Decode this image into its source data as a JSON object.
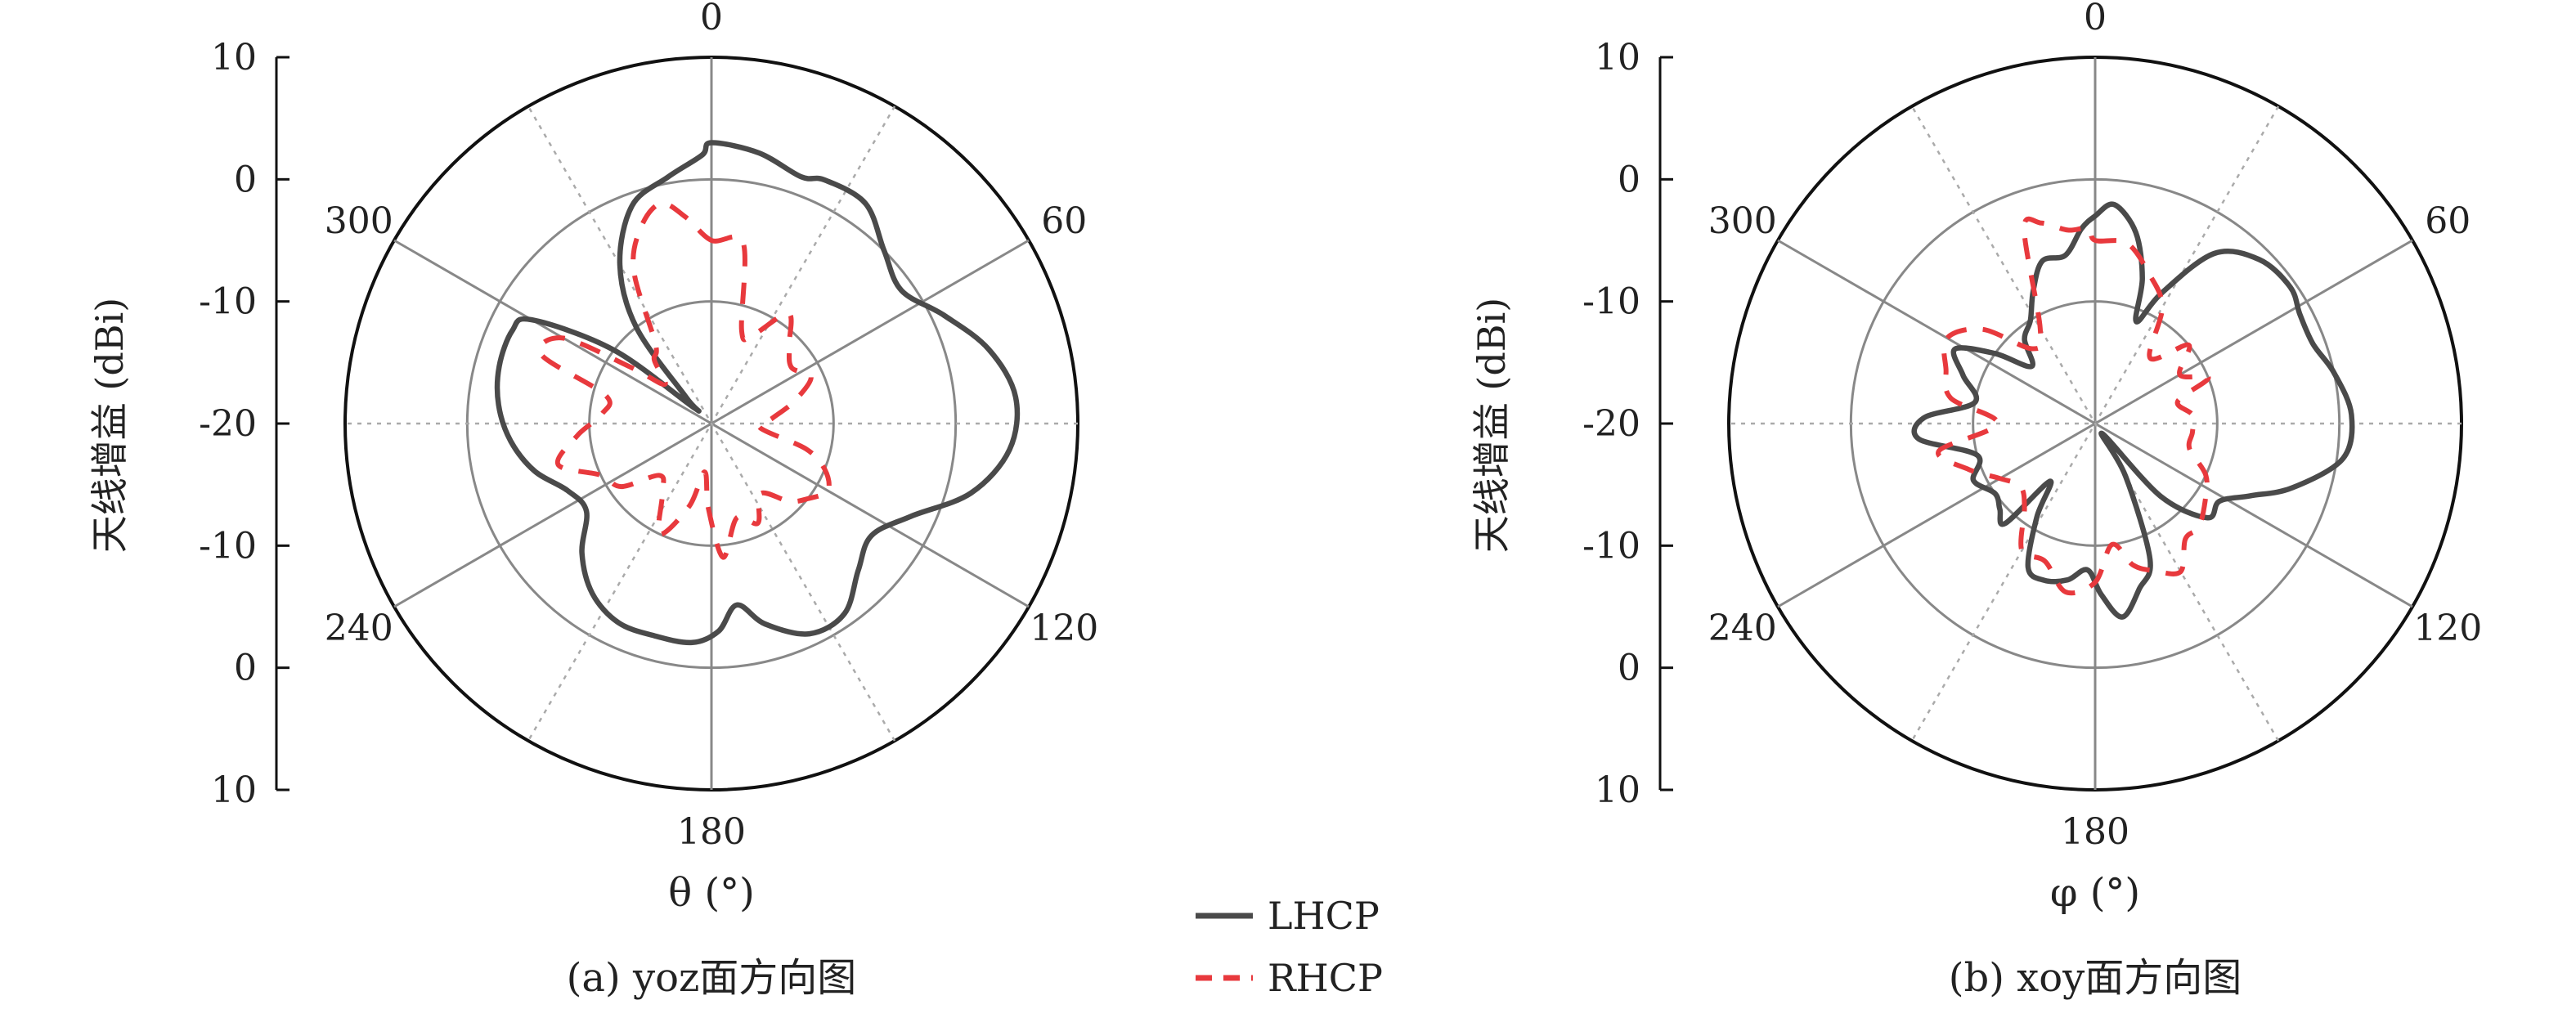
{
  "figure": {
    "legend": {
      "position": "bottom-center",
      "entries": [
        "LHCP",
        "RHCP"
      ]
    },
    "colors": {
      "LHCP": "#4a4a4a",
      "RHCP": "#e8393d",
      "grid": "#888888",
      "spoke": "#aaaaaa"
    }
  },
  "chart_data": [
    {
      "type": "polar-line",
      "caption": "(a) yoz面方向图",
      "xlabel": "θ (°)",
      "ylabel": "天线增益 (dBi)",
      "rlim": [
        -20,
        10
      ],
      "rings": [
        -10,
        0
      ],
      "radial_tick_labels": [
        "10",
        "0",
        "-10",
        "-20",
        "-10",
        "0",
        "10"
      ],
      "angle_labels": [
        {
          "angle": 0,
          "text": "0"
        },
        {
          "angle": 60,
          "text": "60"
        },
        {
          "angle": 120,
          "text": "120"
        },
        {
          "angle": 180,
          "text": "180"
        },
        {
          "angle": 240,
          "text": "240"
        },
        {
          "angle": 300,
          "text": "300"
        }
      ],
      "series": [
        {
          "name": "LHCP",
          "style": "solid",
          "color": "#4a4a4a",
          "points": [
            [
              0,
              3
            ],
            [
              10,
              2.5
            ],
            [
              20,
              1.5
            ],
            [
              25,
              2
            ],
            [
              35,
              2
            ],
            [
              45,
              0
            ],
            [
              55,
              -1
            ],
            [
              65,
              1
            ],
            [
              75,
              3.5
            ],
            [
              85,
              5
            ],
            [
              95,
              4.5
            ],
            [
              105,
              2
            ],
            [
              115,
              -2
            ],
            [
              125,
              -4
            ],
            [
              135,
              -3
            ],
            [
              145,
              -1
            ],
            [
              155,
              -1
            ],
            [
              165,
              -3
            ],
            [
              172,
              -5
            ],
            [
              178,
              -3
            ],
            [
              185,
              -2
            ],
            [
              195,
              -2
            ],
            [
              205,
              -2
            ],
            [
              215,
              -3
            ],
            [
              225,
              -5
            ],
            [
              235,
              -7.5
            ],
            [
              245,
              -7
            ],
            [
              255,
              -5
            ],
            [
              265,
              -3.5
            ],
            [
              275,
              -2.5
            ],
            [
              285,
              -2
            ],
            [
              295,
              -2
            ],
            [
              300,
              -3
            ],
            [
              307,
              -10
            ],
            [
              312,
              -18
            ],
            [
              316,
              -17
            ],
            [
              322,
              -10
            ],
            [
              330,
              -5
            ],
            [
              340,
              -1
            ],
            [
              350,
              0.5
            ],
            [
              358,
              2
            ]
          ]
        },
        {
          "name": "RHCP",
          "style": "dashed",
          "color": "#e8393d",
          "points": [
            [
              0,
              -5
            ],
            [
              10,
              -5
            ],
            [
              18,
              -12
            ],
            [
              25,
              -12
            ],
            [
              35,
              -9
            ],
            [
              45,
              -11
            ],
            [
              55,
              -12
            ],
            [
              65,
              -11
            ],
            [
              75,
              -13
            ],
            [
              85,
              -15
            ],
            [
              95,
              -16
            ],
            [
              105,
              -12
            ],
            [
              112,
              -10
            ],
            [
              120,
              -9
            ],
            [
              128,
              -10
            ],
            [
              135,
              -11
            ],
            [
              145,
              -13
            ],
            [
              155,
              -11
            ],
            [
              165,
              -12
            ],
            [
              175,
              -9
            ],
            [
              182,
              -13
            ],
            [
              188,
              -16
            ],
            [
              195,
              -13
            ],
            [
              205,
              -10
            ],
            [
              215,
              -13
            ],
            [
              225,
              -14
            ],
            [
              235,
              -11
            ],
            [
              245,
              -10
            ],
            [
              255,
              -7
            ],
            [
              265,
              -9
            ],
            [
              275,
              -11
            ],
            [
              285,
              -11
            ],
            [
              292,
              -5
            ],
            [
              300,
              -6
            ],
            [
              305,
              -12
            ],
            [
              310,
              -15
            ],
            [
              318,
              -13
            ],
            [
              325,
              -12
            ],
            [
              333,
              -6
            ],
            [
              340,
              -3
            ],
            [
              347,
              -1.5
            ],
            [
              353,
              -3
            ]
          ]
        }
      ]
    },
    {
      "type": "polar-line",
      "caption": "(b) xoy面方向图",
      "xlabel": "φ (°)",
      "ylabel": "天线增益 (dBi)",
      "rlim": [
        -20,
        10
      ],
      "rings": [
        -10,
        0
      ],
      "radial_tick_labels": [
        "10",
        "0",
        "-10",
        "-20",
        "-10",
        "0",
        "10"
      ],
      "angle_labels": [
        {
          "angle": 0,
          "text": "0"
        },
        {
          "angle": 60,
          "text": "60"
        },
        {
          "angle": 120,
          "text": "120"
        },
        {
          "angle": 180,
          "text": "180"
        },
        {
          "angle": 240,
          "text": "240"
        },
        {
          "angle": 300,
          "text": "300"
        }
      ],
      "series": [
        {
          "name": "LHCP",
          "style": "solid",
          "color": "#4a4a4a",
          "points": [
            [
              0,
              -3
            ],
            [
              5,
              -2
            ],
            [
              12,
              -4
            ],
            [
              18,
              -7.5
            ],
            [
              22,
              -11
            ],
            [
              27,
              -8
            ],
            [
              35,
              -3
            ],
            [
              45,
              -1
            ],
            [
              55,
              -0.5
            ],
            [
              62,
              -1
            ],
            [
              70,
              -1
            ],
            [
              78,
              0
            ],
            [
              88,
              1
            ],
            [
              98,
              0.5
            ],
            [
              108,
              -3
            ],
            [
              115,
              -6
            ],
            [
              122,
              -8
            ],
            [
              130,
              -8
            ],
            [
              138,
              -12
            ],
            [
              145,
              -19
            ],
            [
              150,
              -15
            ],
            [
              158,
              -8
            ],
            [
              165,
              -6
            ],
            [
              172,
              -4
            ],
            [
              178,
              -6
            ],
            [
              183,
              -8
            ],
            [
              190,
              -7
            ],
            [
              198,
              -6.5
            ],
            [
              205,
              -7
            ],
            [
              212,
              -11
            ],
            [
              218,
              -14
            ],
            [
              222,
              -9
            ],
            [
              228,
              -9.5
            ],
            [
              235,
              -10
            ],
            [
              245,
              -9
            ],
            [
              255,
              -10
            ],
            [
              265,
              -5.5
            ],
            [
              272,
              -6
            ],
            [
              280,
              -10
            ],
            [
              290,
              -8.5
            ],
            [
              298,
              -7
            ],
            [
              305,
              -10
            ],
            [
              312,
              -13
            ],
            [
              320,
              -11
            ],
            [
              328,
              -10
            ],
            [
              335,
              -8
            ],
            [
              342,
              -6
            ],
            [
              350,
              -6
            ],
            [
              356,
              -4
            ]
          ]
        },
        {
          "name": "RHCP",
          "style": "dashed",
          "color": "#e8393d",
          "points": [
            [
              0,
              -5
            ],
            [
              10,
              -5
            ],
            [
              20,
              -7
            ],
            [
              30,
              -9
            ],
            [
              40,
              -13
            ],
            [
              50,
              -10
            ],
            [
              60,
              -12
            ],
            [
              68,
              -10
            ],
            [
              75,
              -13
            ],
            [
              85,
              -12
            ],
            [
              95,
              -12
            ],
            [
              105,
              -12
            ],
            [
              115,
              -10
            ],
            [
              125,
              -9
            ],
            [
              135,
              -8
            ],
            [
              142,
              -8
            ],
            [
              150,
              -6
            ],
            [
              158,
              -7
            ],
            [
              165,
              -8
            ],
            [
              172,
              -10
            ],
            [
              180,
              -7
            ],
            [
              190,
              -6
            ],
            [
              200,
              -8
            ],
            [
              210,
              -8
            ],
            [
              220,
              -11
            ],
            [
              230,
              -12
            ],
            [
              240,
              -11
            ],
            [
              250,
              -9
            ],
            [
              260,
              -7
            ],
            [
              270,
              -12
            ],
            [
              280,
              -8
            ],
            [
              290,
              -7
            ],
            [
              300,
              -6
            ],
            [
              310,
              -8
            ],
            [
              320,
              -12
            ],
            [
              330,
              -11
            ],
            [
              340,
              -3
            ],
            [
              345,
              -3
            ],
            [
              352,
              -4
            ],
            [
              358,
              -4
            ]
          ]
        }
      ]
    }
  ]
}
